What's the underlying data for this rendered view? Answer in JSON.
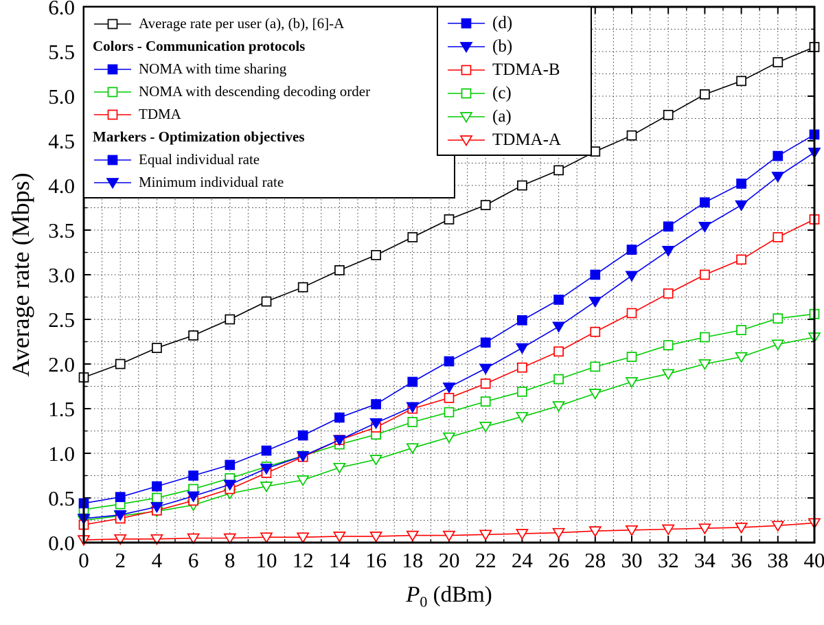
{
  "figure": {
    "background": "#ffffff",
    "frame_color": "#000000",
    "grid_style": "dotted"
  },
  "colors": {
    "black": "#000000",
    "blue": "#0000ee",
    "green": "#00cc00",
    "red": "#ff0000"
  },
  "axis_titles": {
    "x_var": "P",
    "x_sub": "0",
    "x_unit": " (dBm)"
  },
  "legend_left": {
    "items": [
      {
        "type": "entry",
        "label": "Average rate per user (a), (b), [6]-A",
        "marker": "square-open",
        "color": "#000000"
      },
      {
        "type": "header",
        "label": "Colors - Communication protocols"
      },
      {
        "type": "entry",
        "label": "NOMA with time sharing",
        "marker": "square-filled",
        "color": "#0000ee"
      },
      {
        "type": "entry",
        "label": "NOMA with descending decoding order",
        "marker": "square-open",
        "color": "#00cc00"
      },
      {
        "type": "entry",
        "label": "TDMA",
        "marker": "square-open",
        "color": "#ff0000"
      },
      {
        "type": "header",
        "label": "Markers - Optimization objectives"
      },
      {
        "type": "entry",
        "label": "Equal individual rate",
        "marker": "square-filled",
        "color": "#0000ee"
      },
      {
        "type": "entry",
        "label": "Minimum individual rate",
        "marker": "triangle-filled",
        "color": "#0000ee"
      }
    ]
  },
  "legend_right": {
    "items": [
      {
        "type": "entry",
        "label": "(d)",
        "marker": "square-filled",
        "color": "#0000ee"
      },
      {
        "type": "entry",
        "label": "(b)",
        "marker": "triangle-filled",
        "color": "#0000ee"
      },
      {
        "type": "entry",
        "label": "TDMA-B",
        "marker": "square-open",
        "color": "#ff0000"
      },
      {
        "type": "entry",
        "label": "(c)",
        "marker": "square-open",
        "color": "#00cc00"
      },
      {
        "type": "entry",
        "label": "(a)",
        "marker": "triangle-open",
        "color": "#00cc00"
      },
      {
        "type": "entry",
        "label": "TDMA-A",
        "marker": "triangle-open",
        "color": "#ff0000"
      }
    ]
  },
  "chart_data": {
    "type": "line",
    "title": "",
    "xlabel": "P0 (dBm)",
    "ylabel": "Average rate (Mbps)",
    "xlim": [
      0,
      40
    ],
    "ylim": [
      0,
      6
    ],
    "x_major_step": 2,
    "x_minor_step": 1,
    "y_major_step": 0.5,
    "y_minor_step": 0.25,
    "x_ticks": [
      "0",
      "2",
      "4",
      "6",
      "8",
      "10",
      "12",
      "14",
      "16",
      "18",
      "20",
      "22",
      "24",
      "26",
      "28",
      "30",
      "32",
      "34",
      "36",
      "38",
      "40"
    ],
    "y_ticks": [
      "0.0",
      "0.5",
      "1.0",
      "1.5",
      "2.0",
      "2.5",
      "3.0",
      "3.5",
      "4.0",
      "4.5",
      "5.0",
      "5.5",
      "6.0"
    ],
    "grid": true,
    "legend_position": "top",
    "x": [
      0,
      2,
      4,
      6,
      8,
      10,
      12,
      14,
      16,
      18,
      20,
      22,
      24,
      26,
      28,
      30,
      32,
      34,
      36,
      38,
      40
    ],
    "series": [
      {
        "name": "Average rate per user (a), (b), [6]-A",
        "marker": "square-open",
        "color": "#000000",
        "values": [
          1.85,
          2.0,
          2.18,
          2.32,
          2.5,
          2.7,
          2.86,
          3.05,
          3.22,
          3.42,
          3.62,
          3.78,
          4.0,
          4.17,
          4.38,
          4.56,
          4.79,
          5.02,
          5.17,
          5.38,
          5.55
        ]
      },
      {
        "name": "TDMA-A",
        "marker": "triangle-open",
        "color": "#ff0000",
        "values": [
          0.03,
          0.04,
          0.04,
          0.05,
          0.05,
          0.06,
          0.06,
          0.07,
          0.07,
          0.08,
          0.08,
          0.09,
          0.1,
          0.11,
          0.13,
          0.14,
          0.15,
          0.16,
          0.17,
          0.19,
          0.22
        ]
      },
      {
        "name": "(a)",
        "marker": "triangle-open",
        "color": "#00cc00",
        "values": [
          0.25,
          0.3,
          0.35,
          0.42,
          0.55,
          0.63,
          0.7,
          0.84,
          0.93,
          1.06,
          1.18,
          1.3,
          1.41,
          1.53,
          1.67,
          1.8,
          1.89,
          2.0,
          2.08,
          2.22,
          2.3
        ]
      },
      {
        "name": "(c)",
        "marker": "square-open",
        "color": "#00cc00",
        "values": [
          0.37,
          0.43,
          0.5,
          0.6,
          0.72,
          0.85,
          0.97,
          1.1,
          1.21,
          1.35,
          1.46,
          1.58,
          1.69,
          1.83,
          1.97,
          2.08,
          2.21,
          2.3,
          2.38,
          2.51,
          2.56
        ]
      },
      {
        "name": "TDMA-B",
        "marker": "square-open",
        "color": "#ff0000",
        "values": [
          0.2,
          0.27,
          0.36,
          0.47,
          0.6,
          0.78,
          0.96,
          1.15,
          1.29,
          1.5,
          1.62,
          1.78,
          1.96,
          2.14,
          2.36,
          2.57,
          2.79,
          3.0,
          3.17,
          3.42,
          3.62
        ]
      },
      {
        "name": "(b)",
        "marker": "triangle-filled",
        "color": "#0000ee",
        "values": [
          0.27,
          0.31,
          0.4,
          0.52,
          0.65,
          0.83,
          0.97,
          1.15,
          1.34,
          1.52,
          1.74,
          1.95,
          2.18,
          2.42,
          2.7,
          2.99,
          3.27,
          3.54,
          3.78,
          4.1,
          4.37
        ]
      },
      {
        "name": "(d)",
        "marker": "square-filled",
        "color": "#0000ee",
        "values": [
          0.44,
          0.51,
          0.63,
          0.75,
          0.87,
          1.03,
          1.2,
          1.4,
          1.55,
          1.8,
          2.03,
          2.24,
          2.49,
          2.72,
          3.0,
          3.28,
          3.54,
          3.81,
          4.02,
          4.33,
          4.57
        ]
      }
    ]
  }
}
